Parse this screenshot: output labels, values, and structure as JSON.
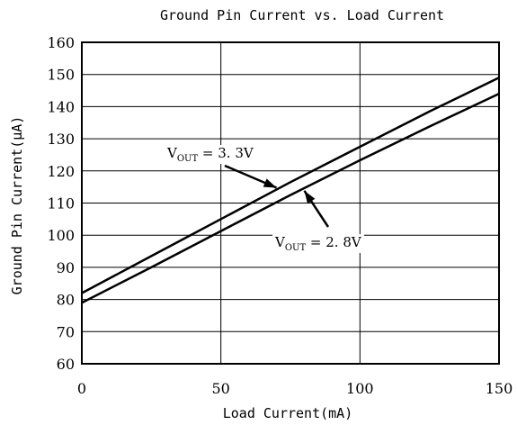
{
  "chart_data": {
    "type": "line",
    "title": "Ground Pin Current vs. Load Current",
    "xlabel": "Load Current(mA)",
    "ylabel": "Ground Pin Current(μA)",
    "xlim": [
      0,
      150
    ],
    "ylim": [
      60,
      160
    ],
    "xticks": [
      0,
      50,
      100,
      150
    ],
    "yticks": [
      60,
      70,
      80,
      90,
      100,
      110,
      120,
      130,
      140,
      150,
      160
    ],
    "grid": true,
    "series": [
      {
        "x": [
          0,
          25,
          50,
          75,
          100,
          125,
          150
        ],
        "y": [
          82,
          93.5,
          105,
          116.5,
          127.5,
          138.5,
          149
        ]
      },
      {
        "x": [
          0,
          25,
          50,
          75,
          100,
          125,
          150
        ],
        "y": [
          79,
          90,
          101.3,
          112.5,
          123.3,
          133.8,
          144
        ]
      }
    ],
    "annotations": [
      {
        "main": "V",
        "sub": "OUT",
        "rest": " = 3. 3V",
        "series": 0,
        "at_x": 70
      },
      {
        "main": "V",
        "sub": "OUT",
        "rest": " = 2. 8V",
        "series": 1,
        "at_x": 80
      }
    ]
  }
}
